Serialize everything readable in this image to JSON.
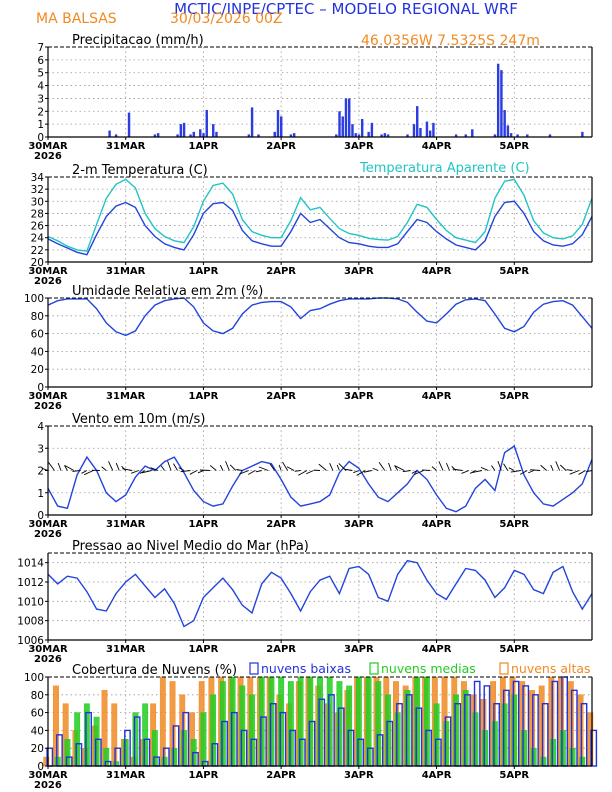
{
  "header": {
    "title": "MCTIC/INPE/CPTEC – MODELO REGIONAL WRF",
    "location": "MA BALSAS",
    "run": "30/03/2026 00Z",
    "coords": "46.0356W  7.5325S  247m",
    "title_color": "#2233dd",
    "accent_color": "#f08a24"
  },
  "x_axis": {
    "labels": [
      "30MAR",
      "31MAR",
      "1APR",
      "2APR",
      "3APR",
      "4APR",
      "5APR"
    ],
    "year": "2026",
    "hours_total": 168
  },
  "chart_data": [
    {
      "type": "bar",
      "title": "Precipitacao (mm/h)",
      "ylim": [
        0,
        7
      ],
      "yticks": [
        "0",
        "1",
        "2",
        "3",
        "4",
        "5",
        "6",
        "7"
      ],
      "x": [
        19,
        21,
        25,
        33,
        34,
        40,
        41,
        42,
        44,
        45,
        47,
        48,
        49,
        51,
        52,
        62,
        63,
        65,
        70,
        71,
        72,
        75,
        76,
        89,
        90,
        91,
        92,
        93,
        94,
        95,
        96,
        97,
        99,
        100,
        103,
        104,
        105,
        111,
        113,
        114,
        115,
        117,
        118,
        119,
        126,
        129,
        131,
        138,
        139,
        140,
        141,
        142,
        143,
        145,
        148,
        155,
        165
      ],
      "values": [
        0.5,
        0.2,
        1.9,
        0.2,
        0.3,
        0.2,
        1.0,
        1.1,
        0.2,
        0.4,
        0.6,
        0.3,
        2.1,
        1.0,
        0.4,
        0.2,
        2.3,
        0.2,
        0.4,
        2.1,
        1.6,
        0.2,
        0.3,
        0.2,
        2.0,
        1.6,
        3.0,
        3.0,
        1.0,
        0.3,
        0.2,
        1.4,
        0.4,
        1.1,
        0.2,
        0.3,
        0.2,
        0.2,
        1.0,
        2.4,
        0.7,
        1.2,
        0.5,
        1.1,
        0.2,
        0.2,
        0.6,
        0.2,
        5.7,
        5.2,
        2.1,
        0.9,
        0.3,
        0.2,
        0.2,
        0.2,
        0.4
      ],
      "color": "#2b3ce0"
    },
    {
      "type": "line",
      "title": "2-m Temperatura (C)",
      "legend": [
        "",
        "Temperatura Aparente (C)"
      ],
      "ylim": [
        20,
        34
      ],
      "yticks": [
        "20",
        "22",
        "24",
        "26",
        "28",
        "30",
        "32",
        "34"
      ],
      "x": [
        0,
        3,
        6,
        9,
        12,
        15,
        18,
        21,
        24,
        27,
        30,
        33,
        36,
        39,
        42,
        45,
        48,
        51,
        54,
        57,
        60,
        63,
        66,
        69,
        72,
        75,
        78,
        81,
        84,
        87,
        90,
        93,
        96,
        99,
        102,
        105,
        108,
        111,
        114,
        117,
        120,
        123,
        126,
        129,
        132,
        135,
        138,
        141,
        144,
        147,
        150,
        153,
        156,
        159,
        162,
        165,
        168
      ],
      "series": [
        {
          "name": "Temperatura 2m",
          "color": "#2244dd",
          "values": [
            23.8,
            23.0,
            22.3,
            21.6,
            21.2,
            24.5,
            27.5,
            29.2,
            29.8,
            29.0,
            26.0,
            24.2,
            23.0,
            22.4,
            22.0,
            24.5,
            28.0,
            29.6,
            29.8,
            28.5,
            25.2,
            23.5,
            23.0,
            22.6,
            22.6,
            25.0,
            28.0,
            26.5,
            27.0,
            25.5,
            24.0,
            23.2,
            23.0,
            22.6,
            22.4,
            22.4,
            23.0,
            25.0,
            27.0,
            26.5,
            25.0,
            23.8,
            22.8,
            22.4,
            22.0,
            23.5,
            27.5,
            29.8,
            30.0,
            28.0,
            25.0,
            23.5,
            22.8,
            22.6,
            23.0,
            24.5,
            27.5
          ]
        },
        {
          "name": "Temperatura Aparente",
          "color": "#22c4c4",
          "values": [
            24.2,
            23.5,
            22.6,
            22.0,
            21.8,
            26.2,
            30.5,
            32.8,
            33.6,
            32.2,
            28.0,
            25.5,
            24.2,
            23.5,
            23.2,
            25.8,
            30.0,
            32.6,
            33.0,
            31.2,
            27.0,
            25.0,
            24.4,
            24.0,
            24.0,
            26.8,
            30.6,
            28.6,
            29.0,
            27.2,
            25.5,
            24.7,
            24.4,
            23.9,
            23.7,
            23.6,
            24.2,
            26.5,
            29.5,
            29.0,
            27.0,
            25.2,
            24.0,
            23.6,
            23.2,
            25.0,
            30.5,
            33.3,
            33.6,
            31.0,
            26.8,
            24.8,
            24.0,
            23.8,
            24.3,
            26.2,
            30.5
          ]
        }
      ]
    },
    {
      "type": "line",
      "title": "Umidade Relativa em 2m (%)",
      "ylim": [
        0,
        100
      ],
      "yticks": [
        "0",
        "20",
        "40",
        "60",
        "80",
        "100"
      ],
      "x": [
        0,
        3,
        6,
        9,
        12,
        15,
        18,
        21,
        24,
        27,
        30,
        33,
        36,
        39,
        42,
        45,
        48,
        51,
        54,
        57,
        60,
        63,
        66,
        69,
        72,
        75,
        78,
        81,
        84,
        87,
        90,
        93,
        96,
        99,
        102,
        105,
        108,
        111,
        114,
        117,
        120,
        123,
        126,
        129,
        132,
        135,
        138,
        141,
        144,
        147,
        150,
        153,
        156,
        159,
        162,
        165,
        168
      ],
      "series": [
        {
          "name": "Umidade Relativa",
          "color": "#2244dd",
          "values": [
            92,
            97,
            99,
            99,
            99,
            88,
            72,
            62,
            58,
            63,
            80,
            92,
            97,
            99,
            100,
            90,
            72,
            63,
            60,
            66,
            82,
            92,
            95,
            96,
            96,
            90,
            77,
            86,
            88,
            93,
            97,
            99,
            99,
            99,
            100,
            100,
            99,
            95,
            84,
            74,
            72,
            82,
            93,
            98,
            99,
            97,
            82,
            66,
            62,
            68,
            84,
            93,
            96,
            97,
            92,
            79,
            66
          ]
        }
      ]
    },
    {
      "type": "line",
      "title": "Vento em 10m (m/s)",
      "ylim": [
        0,
        4
      ],
      "yticks": [
        "0",
        "1",
        "2",
        "3",
        "4"
      ],
      "x": [
        0,
        3,
        6,
        9,
        12,
        15,
        18,
        21,
        24,
        27,
        30,
        33,
        36,
        39,
        42,
        45,
        48,
        51,
        54,
        57,
        60,
        63,
        66,
        69,
        72,
        75,
        78,
        81,
        84,
        87,
        90,
        93,
        96,
        99,
        102,
        105,
        108,
        111,
        114,
        117,
        120,
        123,
        126,
        129,
        132,
        135,
        138,
        141,
        144,
        147,
        150,
        153,
        156,
        159,
        162,
        165,
        168
      ],
      "series": [
        {
          "name": "Vento 10m",
          "color": "#2244dd",
          "values": [
            1.2,
            0.4,
            0.3,
            1.8,
            2.6,
            2.0,
            1.0,
            0.6,
            0.9,
            1.7,
            2.2,
            2.0,
            2.4,
            2.6,
            1.9,
            1.1,
            0.6,
            0.4,
            0.5,
            1.3,
            2.0,
            2.2,
            2.4,
            2.3,
            1.6,
            0.8,
            0.4,
            0.5,
            0.6,
            0.9,
            1.9,
            2.4,
            2.1,
            1.4,
            0.8,
            0.6,
            1.0,
            1.4,
            2.0,
            1.6,
            0.9,
            0.3,
            0.15,
            0.4,
            1.2,
            1.6,
            1.1,
            2.8,
            3.1,
            1.8,
            1.0,
            0.5,
            0.4,
            0.7,
            1.0,
            1.4,
            2.5
          ]
        }
      ]
    },
    {
      "type": "line",
      "title": "Pressao ao Nivel Medio do Mar (hPa)",
      "ylim": [
        1006,
        1015
      ],
      "yticks": [
        "1006",
        "1008",
        "1010",
        "1012",
        "1014"
      ],
      "x": [
        0,
        3,
        6,
        9,
        12,
        15,
        18,
        21,
        24,
        27,
        30,
        33,
        36,
        39,
        42,
        45,
        48,
        51,
        54,
        57,
        60,
        63,
        66,
        69,
        72,
        75,
        78,
        81,
        84,
        87,
        90,
        93,
        96,
        99,
        102,
        105,
        108,
        111,
        114,
        117,
        120,
        123,
        126,
        129,
        132,
        135,
        138,
        141,
        144,
        147,
        150,
        153,
        156,
        159,
        162,
        165,
        168
      ],
      "series": [
        {
          "name": "Pressao",
          "color": "#2244dd",
          "values": [
            1012.8,
            1011.8,
            1012.6,
            1012.4,
            1011.0,
            1009.2,
            1009.0,
            1010.8,
            1012.0,
            1012.8,
            1011.6,
            1010.4,
            1011.3,
            1009.8,
            1007.4,
            1008.0,
            1010.4,
            1011.4,
            1012.4,
            1011.2,
            1009.6,
            1008.8,
            1011.8,
            1013.0,
            1012.4,
            1010.8,
            1009.0,
            1011.0,
            1012.2,
            1012.6,
            1010.8,
            1013.4,
            1013.6,
            1012.8,
            1010.4,
            1010.0,
            1012.8,
            1014.2,
            1014.0,
            1012.2,
            1010.8,
            1010.2,
            1011.8,
            1013.4,
            1013.2,
            1012.2,
            1010.4,
            1011.4,
            1013.2,
            1012.8,
            1011.2,
            1010.8,
            1013.0,
            1013.6,
            1011.0,
            1009.2,
            1010.8
          ]
        }
      ]
    },
    {
      "type": "bar",
      "title": "Cobertura de Nuvens (%)",
      "legend": [
        "nuvens baixas",
        "nuvens medias",
        "nuvens altas"
      ],
      "ylim": [
        0,
        100
      ],
      "yticks": [
        "0",
        "20",
        "40",
        "60",
        "80",
        "100"
      ],
      "x": [
        0,
        3,
        6,
        9,
        12,
        15,
        18,
        21,
        24,
        27,
        30,
        33,
        36,
        39,
        42,
        45,
        48,
        51,
        54,
        57,
        60,
        63,
        66,
        69,
        72,
        75,
        78,
        81,
        84,
        87,
        90,
        93,
        96,
        99,
        102,
        105,
        108,
        111,
        114,
        117,
        120,
        123,
        126,
        129,
        132,
        135,
        138,
        141,
        144,
        147,
        150,
        153,
        156,
        159,
        162,
        165,
        168
      ],
      "series": [
        {
          "name": "nuvens baixas",
          "color": "#2233dd",
          "values": [
            20,
            35,
            10,
            25,
            60,
            30,
            5,
            20,
            40,
            55,
            30,
            10,
            20,
            45,
            60,
            15,
            5,
            25,
            50,
            60,
            40,
            30,
            55,
            70,
            60,
            40,
            30,
            50,
            75,
            80,
            65,
            40,
            30,
            20,
            35,
            50,
            70,
            80,
            65,
            40,
            30,
            55,
            70,
            80,
            95,
            90,
            70,
            85,
            95,
            90,
            80,
            70,
            95,
            100,
            85,
            70,
            40
          ]
        },
        {
          "name": "nuvens medias",
          "color": "#22cc22",
          "values": [
            0,
            10,
            30,
            60,
            70,
            55,
            20,
            5,
            30,
            60,
            70,
            40,
            10,
            20,
            40,
            30,
            60,
            80,
            95,
            100,
            90,
            80,
            100,
            100,
            100,
            95,
            100,
            100,
            100,
            100,
            95,
            90,
            100,
            100,
            95,
            80,
            60,
            85,
            100,
            100,
            70,
            50,
            80,
            85,
            60,
            40,
            50,
            70,
            80,
            40,
            20,
            10,
            30,
            40,
            20,
            10,
            0
          ]
        },
        {
          "name": "nuvens altas",
          "color": "#f08a24",
          "values": [
            10,
            90,
            70,
            40,
            20,
            45,
            85,
            70,
            30,
            10,
            30,
            70,
            100,
            95,
            80,
            60,
            95,
            100,
            100,
            100,
            100,
            100,
            100,
            100,
            80,
            70,
            95,
            100,
            90,
            70,
            60,
            85,
            100,
            100,
            100,
            100,
            95,
            90,
            100,
            100,
            100,
            100,
            100,
            95,
            80,
            75,
            95,
            100,
            100,
            95,
            85,
            90,
            100,
            100,
            95,
            80,
            60
          ]
        }
      ]
    }
  ]
}
